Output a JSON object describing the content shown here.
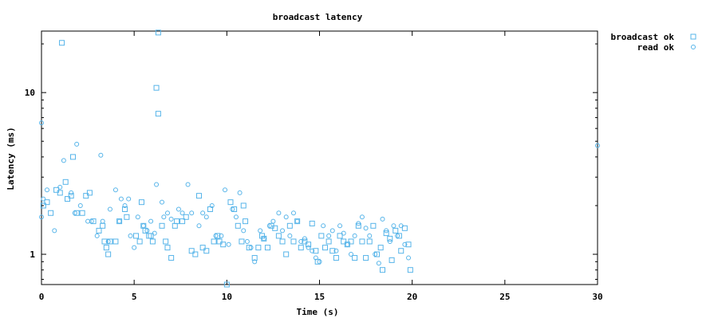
{
  "chart_data": {
    "type": "scatter",
    "title": "broadcast latency",
    "xlabel": "Time (s)",
    "ylabel": "Latency (ms)",
    "x_ticks": [
      0,
      5,
      10,
      15,
      20,
      25,
      30
    ],
    "xlim": [
      0,
      30
    ],
    "y_scale": "log",
    "ylim": [
      0.65,
      24
    ],
    "y_ticks": [
      1,
      10
    ],
    "grid": false,
    "legend_position": "top-right",
    "series": [
      {
        "name": "broadcast ok",
        "marker": "square",
        "color": "#56b4e9",
        "points": [
          [
            0.1,
            2.0
          ],
          [
            0.3,
            2.1
          ],
          [
            0.5,
            1.8
          ],
          [
            0.8,
            2.5
          ],
          [
            1.0,
            2.4
          ],
          [
            1.1,
            20.3
          ],
          [
            1.3,
            2.8
          ],
          [
            1.4,
            2.2
          ],
          [
            1.6,
            2.3
          ],
          [
            1.7,
            4.0
          ],
          [
            1.9,
            1.8
          ],
          [
            2.2,
            1.8
          ],
          [
            2.4,
            2.3
          ],
          [
            2.6,
            2.4
          ],
          [
            2.8,
            1.6
          ],
          [
            3.1,
            1.4
          ],
          [
            3.3,
            1.5
          ],
          [
            3.4,
            1.2
          ],
          [
            3.5,
            1.1
          ],
          [
            3.6,
            1.0
          ],
          [
            3.7,
            1.2
          ],
          [
            4.0,
            1.2
          ],
          [
            4.2,
            1.6
          ],
          [
            4.5,
            1.9
          ],
          [
            4.6,
            1.7
          ],
          [
            5.1,
            1.3
          ],
          [
            5.3,
            1.2
          ],
          [
            5.4,
            2.1
          ],
          [
            5.5,
            1.5
          ],
          [
            5.6,
            1.4
          ],
          [
            5.8,
            1.3
          ],
          [
            5.9,
            1.3
          ],
          [
            6.0,
            1.2
          ],
          [
            6.2,
            10.7
          ],
          [
            6.3,
            23.5
          ],
          [
            6.3,
            7.4
          ],
          [
            6.5,
            1.5
          ],
          [
            6.7,
            1.2
          ],
          [
            6.8,
            1.1
          ],
          [
            7.0,
            0.95
          ],
          [
            7.2,
            1.5
          ],
          [
            7.3,
            1.6
          ],
          [
            7.6,
            1.6
          ],
          [
            7.8,
            1.7
          ],
          [
            8.1,
            1.05
          ],
          [
            8.3,
            1.0
          ],
          [
            8.5,
            2.3
          ],
          [
            8.7,
            1.1
          ],
          [
            8.9,
            1.05
          ],
          [
            9.1,
            1.9
          ],
          [
            9.3,
            1.2
          ],
          [
            9.5,
            1.3
          ],
          [
            9.6,
            1.2
          ],
          [
            9.8,
            1.15
          ],
          [
            10.0,
            0.65
          ],
          [
            10.2,
            2.1
          ],
          [
            10.4,
            1.9
          ],
          [
            10.6,
            1.5
          ],
          [
            10.8,
            1.2
          ],
          [
            10.9,
            2.0
          ],
          [
            11.0,
            1.6
          ],
          [
            11.2,
            1.1
          ],
          [
            11.5,
            0.95
          ],
          [
            11.7,
            1.1
          ],
          [
            11.9,
            1.3
          ],
          [
            12.0,
            1.25
          ],
          [
            12.2,
            1.1
          ],
          [
            12.4,
            1.5
          ],
          [
            12.6,
            1.45
          ],
          [
            12.8,
            1.3
          ],
          [
            13.0,
            1.2
          ],
          [
            13.2,
            1.0
          ],
          [
            13.4,
            1.5
          ],
          [
            13.6,
            1.2
          ],
          [
            13.8,
            1.6
          ],
          [
            14.0,
            1.1
          ],
          [
            14.2,
            1.2
          ],
          [
            14.4,
            1.15
          ],
          [
            14.6,
            1.55
          ],
          [
            14.8,
            1.05
          ],
          [
            14.9,
            0.9
          ],
          [
            15.1,
            1.3
          ],
          [
            15.3,
            1.1
          ],
          [
            15.5,
            1.2
          ],
          [
            15.7,
            1.05
          ],
          [
            15.9,
            0.95
          ],
          [
            16.1,
            1.3
          ],
          [
            16.3,
            1.2
          ],
          [
            16.5,
            1.15
          ],
          [
            16.7,
            1.2
          ],
          [
            16.9,
            0.95
          ],
          [
            17.1,
            1.5
          ],
          [
            17.3,
            1.2
          ],
          [
            17.5,
            0.95
          ],
          [
            17.7,
            1.2
          ],
          [
            17.9,
            1.5
          ],
          [
            18.1,
            1.0
          ],
          [
            18.3,
            1.1
          ],
          [
            18.4,
            0.8
          ],
          [
            18.6,
            1.35
          ],
          [
            18.8,
            1.25
          ],
          [
            18.9,
            0.92
          ],
          [
            19.1,
            1.4
          ],
          [
            19.3,
            1.3
          ],
          [
            19.4,
            1.05
          ],
          [
            19.6,
            1.45
          ],
          [
            19.8,
            1.15
          ],
          [
            19.9,
            0.8
          ]
        ]
      },
      {
        "name": "read ok",
        "marker": "circle",
        "color": "#56b4e9",
        "points": [
          [
            0.0,
            6.5
          ],
          [
            0.0,
            1.7
          ],
          [
            0.1,
            2.2
          ],
          [
            0.3,
            2.5
          ],
          [
            0.7,
            1.4
          ],
          [
            1.0,
            2.6
          ],
          [
            1.2,
            3.8
          ],
          [
            1.6,
            2.4
          ],
          [
            1.8,
            1.8
          ],
          [
            1.9,
            4.8
          ],
          [
            2.1,
            2.0
          ],
          [
            2.5,
            1.6
          ],
          [
            2.7,
            1.6
          ],
          [
            3.0,
            1.3
          ],
          [
            3.2,
            4.1
          ],
          [
            3.3,
            1.6
          ],
          [
            3.6,
            1.2
          ],
          [
            3.7,
            1.9
          ],
          [
            4.0,
            2.5
          ],
          [
            4.2,
            1.6
          ],
          [
            4.3,
            2.2
          ],
          [
            4.5,
            2.0
          ],
          [
            4.7,
            2.2
          ],
          [
            4.8,
            1.3
          ],
          [
            5.0,
            1.1
          ],
          [
            5.2,
            1.7
          ],
          [
            5.5,
            1.5
          ],
          [
            5.7,
            1.4
          ],
          [
            5.9,
            1.6
          ],
          [
            6.1,
            1.35
          ],
          [
            6.2,
            2.7
          ],
          [
            6.5,
            2.1
          ],
          [
            6.6,
            1.7
          ],
          [
            6.8,
            1.8
          ],
          [
            7.0,
            1.65
          ],
          [
            7.4,
            1.9
          ],
          [
            7.6,
            1.8
          ],
          [
            7.9,
            2.7
          ],
          [
            8.1,
            1.8
          ],
          [
            8.5,
            1.5
          ],
          [
            8.7,
            1.8
          ],
          [
            8.9,
            1.7
          ],
          [
            9.2,
            2.0
          ],
          [
            9.4,
            1.3
          ],
          [
            9.7,
            1.3
          ],
          [
            9.9,
            2.5
          ],
          [
            10.1,
            1.15
          ],
          [
            10.3,
            1.9
          ],
          [
            10.5,
            1.7
          ],
          [
            10.7,
            2.4
          ],
          [
            10.9,
            1.4
          ],
          [
            11.1,
            1.2
          ],
          [
            11.3,
            1.1
          ],
          [
            11.5,
            0.9
          ],
          [
            11.8,
            1.4
          ],
          [
            12.0,
            1.25
          ],
          [
            12.3,
            1.5
          ],
          [
            12.5,
            1.6
          ],
          [
            12.8,
            1.8
          ],
          [
            13.0,
            1.4
          ],
          [
            13.2,
            1.7
          ],
          [
            13.4,
            1.3
          ],
          [
            13.6,
            1.8
          ],
          [
            13.8,
            1.6
          ],
          [
            14.0,
            1.2
          ],
          [
            14.2,
            1.25
          ],
          [
            14.4,
            1.1
          ],
          [
            14.6,
            1.05
          ],
          [
            14.8,
            0.95
          ],
          [
            15.0,
            0.9
          ],
          [
            15.2,
            1.5
          ],
          [
            15.5,
            1.3
          ],
          [
            15.7,
            1.4
          ],
          [
            15.9,
            1.05
          ],
          [
            16.1,
            1.5
          ],
          [
            16.3,
            1.35
          ],
          [
            16.5,
            1.15
          ],
          [
            16.7,
            1.0
          ],
          [
            16.9,
            1.3
          ],
          [
            17.1,
            1.55
          ],
          [
            17.3,
            1.7
          ],
          [
            17.5,
            1.45
          ],
          [
            17.7,
            1.3
          ],
          [
            18.0,
            1.0
          ],
          [
            18.2,
            0.88
          ],
          [
            18.4,
            1.65
          ],
          [
            18.6,
            1.4
          ],
          [
            18.8,
            1.2
          ],
          [
            19.0,
            1.5
          ],
          [
            19.2,
            1.3
          ],
          [
            19.4,
            1.5
          ],
          [
            19.6,
            1.15
          ],
          [
            19.8,
            0.95
          ],
          [
            30.0,
            4.7
          ]
        ]
      }
    ]
  }
}
